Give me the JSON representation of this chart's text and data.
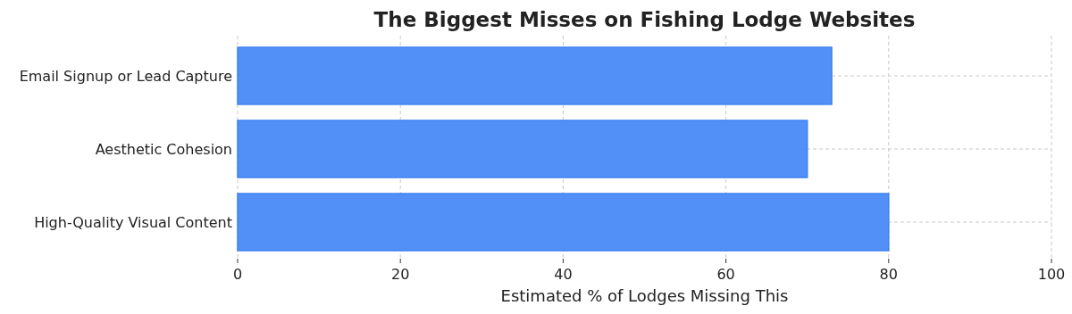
{
  "chart_data": {
    "type": "bar",
    "orientation": "horizontal",
    "title": "The Biggest Misses on Fishing Lodge Websites",
    "xlabel": "Estimated % of Lodges Missing This",
    "categories": [
      "Email Signup or Lead Capture",
      "Aesthetic Cohesion",
      "High-Quality Visual Content"
    ],
    "values": [
      73,
      70,
      80
    ],
    "color": "#4f8ef7",
    "xlim": [
      0,
      100
    ],
    "xticks": [
      0,
      20,
      40,
      60,
      80,
      100
    ],
    "grid": true
  }
}
